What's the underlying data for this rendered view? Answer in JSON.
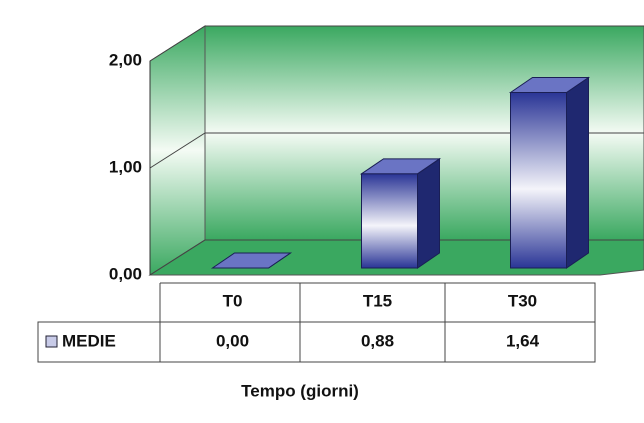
{
  "chart_data": {
    "type": "bar",
    "categories": [
      "T0",
      "T15",
      "T30"
    ],
    "series": [
      {
        "name": "MEDIE",
        "color": "#2a3596",
        "values": [
          0,
          0.88,
          1.64
        ],
        "value_labels": [
          "0,00",
          "0,88",
          "1,64"
        ]
      }
    ],
    "ylim": [
      0,
      2
    ],
    "yticks": [
      {
        "value": 0,
        "label": "0,00"
      },
      {
        "value": 1,
        "label": "1,00"
      },
      {
        "value": 2,
        "label": "2,00"
      }
    ],
    "grid": true,
    "xlabel": "Tempo (giorni)"
  }
}
